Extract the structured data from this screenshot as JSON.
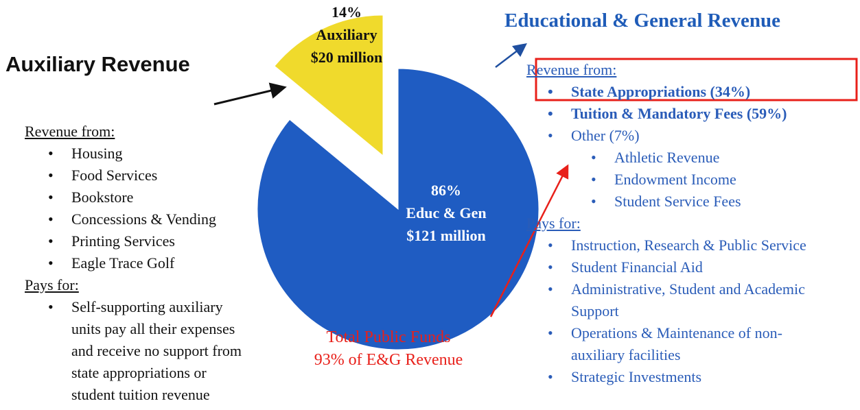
{
  "chart_data": {
    "type": "pie",
    "categories": [
      "Auxiliary",
      "Educ & Gen"
    ],
    "values": [
      14,
      86
    ],
    "value_labels": [
      "14%",
      "86%"
    ],
    "amount_labels": [
      "$20 million",
      "$121 million"
    ],
    "colors": [
      "#f0da2c",
      "#1f5cc2"
    ]
  },
  "left": {
    "title": "Auxiliary Revenue",
    "revenue_heading": "Revenue from:",
    "revenue_items": [
      "Housing",
      "Food Services",
      "Bookstore",
      "Concessions & Vending",
      "Printing Services",
      "Eagle Trace Golf"
    ],
    "pays_heading": "Pays for:",
    "pays_items": [
      "Self-supporting auxiliary units pay all their expenses and receive no support from state appropriations or student tuition revenue"
    ]
  },
  "right": {
    "title": "Educational & General Revenue",
    "revenue_heading": "Revenue from:",
    "highlighted_items": [
      "State Appropriations (34%)",
      "Tuition & Mandatory Fees (59%)"
    ],
    "other_item": "Other (7%)",
    "other_subitems": [
      "Athletic Revenue",
      "Endowment Income",
      "Student Service Fees"
    ],
    "pays_heading": "Pays for:",
    "pays_items": [
      "Instruction, Research & Public Service",
      "Student Financial Aid",
      "Administrative, Student and Academic Support",
      "Operations & Maintenance of non-auxiliary facilities",
      "Strategic Investments"
    ]
  },
  "note": {
    "lines": [
      "Total Public Funds",
      "93% of E&G Revenue"
    ]
  }
}
